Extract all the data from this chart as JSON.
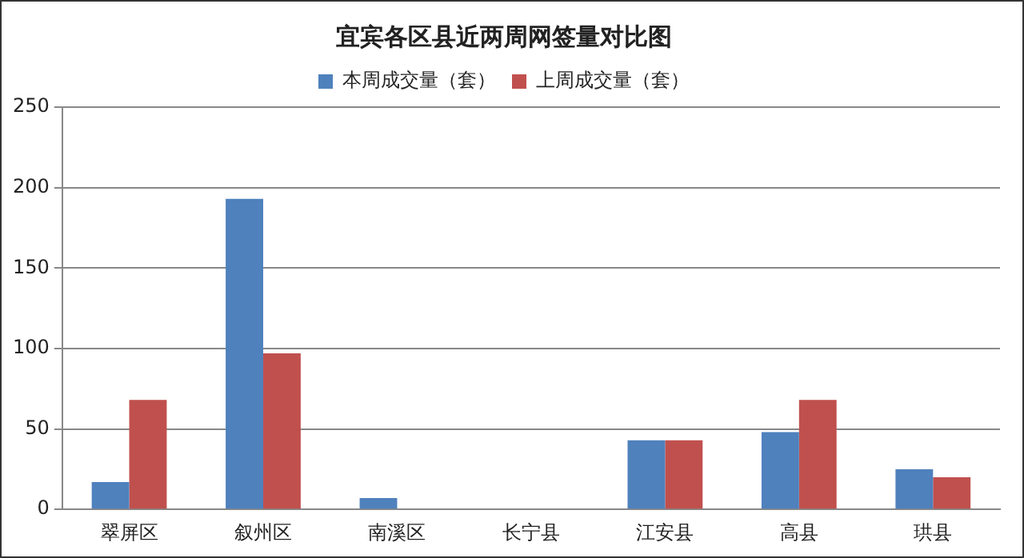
{
  "chart_data": {
    "type": "bar",
    "title": "宜宾各区县近两周网签量对比图",
    "categories": [
      "翠屏区",
      "叙州区",
      "南溪区",
      "长宁县",
      "江安县",
      "高县",
      "珙县"
    ],
    "series": [
      {
        "name": "本周成交量（套）",
        "color": "#4f81bd",
        "values": [
          17,
          193,
          7,
          0,
          43,
          48,
          25
        ]
      },
      {
        "name": "上周成交量（套）",
        "color": "#c0504d",
        "values": [
          68,
          97,
          0,
          0,
          43,
          68,
          20
        ]
      }
    ],
    "ylim": [
      0,
      250
    ],
    "yticks": [
      0,
      50,
      100,
      150,
      200,
      250
    ],
    "grid": "y",
    "legend": "top"
  }
}
